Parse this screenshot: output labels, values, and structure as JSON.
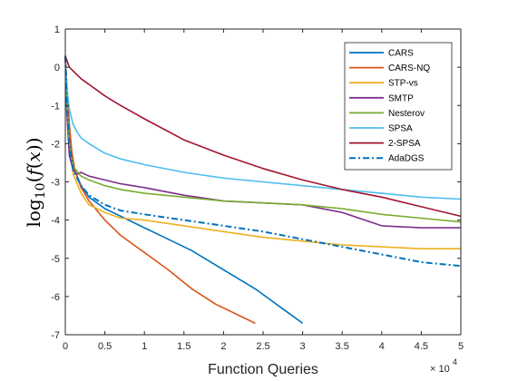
{
  "chart_data": {
    "type": "line",
    "xlabel": "Function Queries",
    "ylabel_parts": [
      "log",
      "10",
      "(",
      "f",
      "(",
      "x",
      "))"
    ],
    "x_exponent_base": "× 10",
    "x_exponent_power": "4",
    "xlim": [
      0,
      5
    ],
    "ylim": [
      -7,
      1
    ],
    "xticks": [
      0,
      0.5,
      1,
      1.5,
      2,
      2.5,
      3,
      3.5,
      4,
      4.5,
      5
    ],
    "xtick_labels": [
      "0",
      "0.5",
      "1",
      "1.5",
      "2",
      "2.5",
      "3",
      "3.5",
      "4",
      "4.5",
      "5"
    ],
    "yticks": [
      1,
      0,
      -1,
      -2,
      -3,
      -4,
      -5,
      -6,
      -7
    ],
    "ytick_labels": [
      "1",
      "0",
      "-1",
      "-2",
      "-3",
      "-4",
      "-5",
      "-6",
      "-7"
    ],
    "legend_position": "top-right",
    "grid": false,
    "series": [
      {
        "name": "CARS",
        "color": "#0072BD",
        "dash": "solid",
        "x": [
          0,
          0.02,
          0.05,
          0.08,
          0.12,
          0.2,
          0.3,
          0.5,
          0.7,
          1.0,
          1.3,
          1.6,
          2.0,
          2.4,
          2.8,
          3.0
        ],
        "y": [
          0.3,
          -0.5,
          -1.5,
          -2.2,
          -2.7,
          -3.1,
          -3.4,
          -3.7,
          -3.9,
          -4.2,
          -4.5,
          -4.8,
          -5.3,
          -5.8,
          -6.4,
          -6.7
        ]
      },
      {
        "name": "CARS-NQ",
        "color": "#D95319",
        "dash": "solid",
        "x": [
          0,
          0.02,
          0.05,
          0.08,
          0.12,
          0.2,
          0.3,
          0.5,
          0.7,
          1.0,
          1.3,
          1.6,
          1.9,
          2.2,
          2.4
        ],
        "y": [
          0.3,
          -0.5,
          -1.5,
          -2.2,
          -2.7,
          -3.15,
          -3.5,
          -4.0,
          -4.4,
          -4.85,
          -5.3,
          -5.8,
          -6.2,
          -6.5,
          -6.7
        ]
      },
      {
        "name": "STP-vs",
        "color": "#EDB120",
        "dash": "solid",
        "x": [
          0,
          0.02,
          0.05,
          0.1,
          0.2,
          0.3,
          0.5,
          0.7,
          1.0,
          1.5,
          2.0,
          2.5,
          3.0,
          3.5,
          4.0,
          4.5,
          5.0
        ],
        "y": [
          0.3,
          -1.0,
          -2.0,
          -2.8,
          -3.3,
          -3.6,
          -3.8,
          -3.95,
          -4.0,
          -4.15,
          -4.3,
          -4.45,
          -4.55,
          -4.65,
          -4.7,
          -4.75,
          -4.75
        ]
      },
      {
        "name": "SMTP",
        "color": "#7E2F8E",
        "dash": "solid",
        "x": [
          0,
          0.02,
          0.05,
          0.1,
          0.15,
          0.2,
          0.3,
          0.5,
          0.7,
          1.0,
          1.5,
          2.0,
          2.5,
          3.0,
          3.5,
          4.0,
          4.5,
          5.0
        ],
        "y": [
          0.3,
          -1.2,
          -2.3,
          -2.7,
          -2.8,
          -2.75,
          -2.85,
          -2.95,
          -3.05,
          -3.15,
          -3.35,
          -3.5,
          -3.55,
          -3.6,
          -3.8,
          -4.15,
          -4.2,
          -4.2
        ]
      },
      {
        "name": "Nesterov",
        "color": "#77AC30",
        "dash": "solid",
        "x": [
          0,
          0.02,
          0.05,
          0.1,
          0.2,
          0.3,
          0.5,
          0.7,
          1.0,
          1.5,
          2.0,
          2.5,
          3.0,
          3.5,
          4.0,
          4.5,
          5.0
        ],
        "y": [
          0.3,
          -1.0,
          -2.0,
          -2.6,
          -2.85,
          -2.95,
          -3.1,
          -3.2,
          -3.3,
          -3.4,
          -3.5,
          -3.55,
          -3.6,
          -3.7,
          -3.85,
          -3.95,
          -4.05
        ]
      },
      {
        "name": "SPSA",
        "color": "#4DBEEE",
        "dash": "solid",
        "x": [
          0,
          0.02,
          0.05,
          0.1,
          0.15,
          0.2,
          0.3,
          0.5,
          0.7,
          1.0,
          1.5,
          2.0,
          2.5,
          3.0,
          3.5,
          4.0,
          4.5,
          5.0
        ],
        "y": [
          0.2,
          -0.5,
          -1.1,
          -1.5,
          -1.7,
          -1.85,
          -2.0,
          -2.25,
          -2.4,
          -2.55,
          -2.75,
          -2.9,
          -3.0,
          -3.1,
          -3.2,
          -3.3,
          -3.4,
          -3.45
        ]
      },
      {
        "name": "2-SPSA",
        "color": "#A2142F",
        "dash": "solid",
        "x": [
          0,
          0.05,
          0.1,
          0.2,
          0.3,
          0.5,
          0.7,
          1.0,
          1.5,
          2.0,
          2.5,
          3.0,
          3.5,
          4.0,
          4.5,
          5.0
        ],
        "y": [
          0.3,
          0.0,
          -0.1,
          -0.3,
          -0.45,
          -0.75,
          -1.0,
          -1.35,
          -1.9,
          -2.3,
          -2.65,
          -2.95,
          -3.2,
          -3.4,
          -3.65,
          -3.9
        ]
      },
      {
        "name": "AdaDGS",
        "color": "#0072BD",
        "dash": "dashdot",
        "x": [
          0,
          0.02,
          0.05,
          0.1,
          0.2,
          0.3,
          0.5,
          0.7,
          1.0,
          1.5,
          2.0,
          2.5,
          3.0,
          3.5,
          4.0,
          4.5,
          5.0
        ],
        "y": [
          0.3,
          -1.0,
          -2.0,
          -2.7,
          -3.1,
          -3.35,
          -3.6,
          -3.75,
          -3.85,
          -4.0,
          -4.15,
          -4.3,
          -4.5,
          -4.7,
          -4.9,
          -5.1,
          -5.2
        ]
      }
    ]
  }
}
